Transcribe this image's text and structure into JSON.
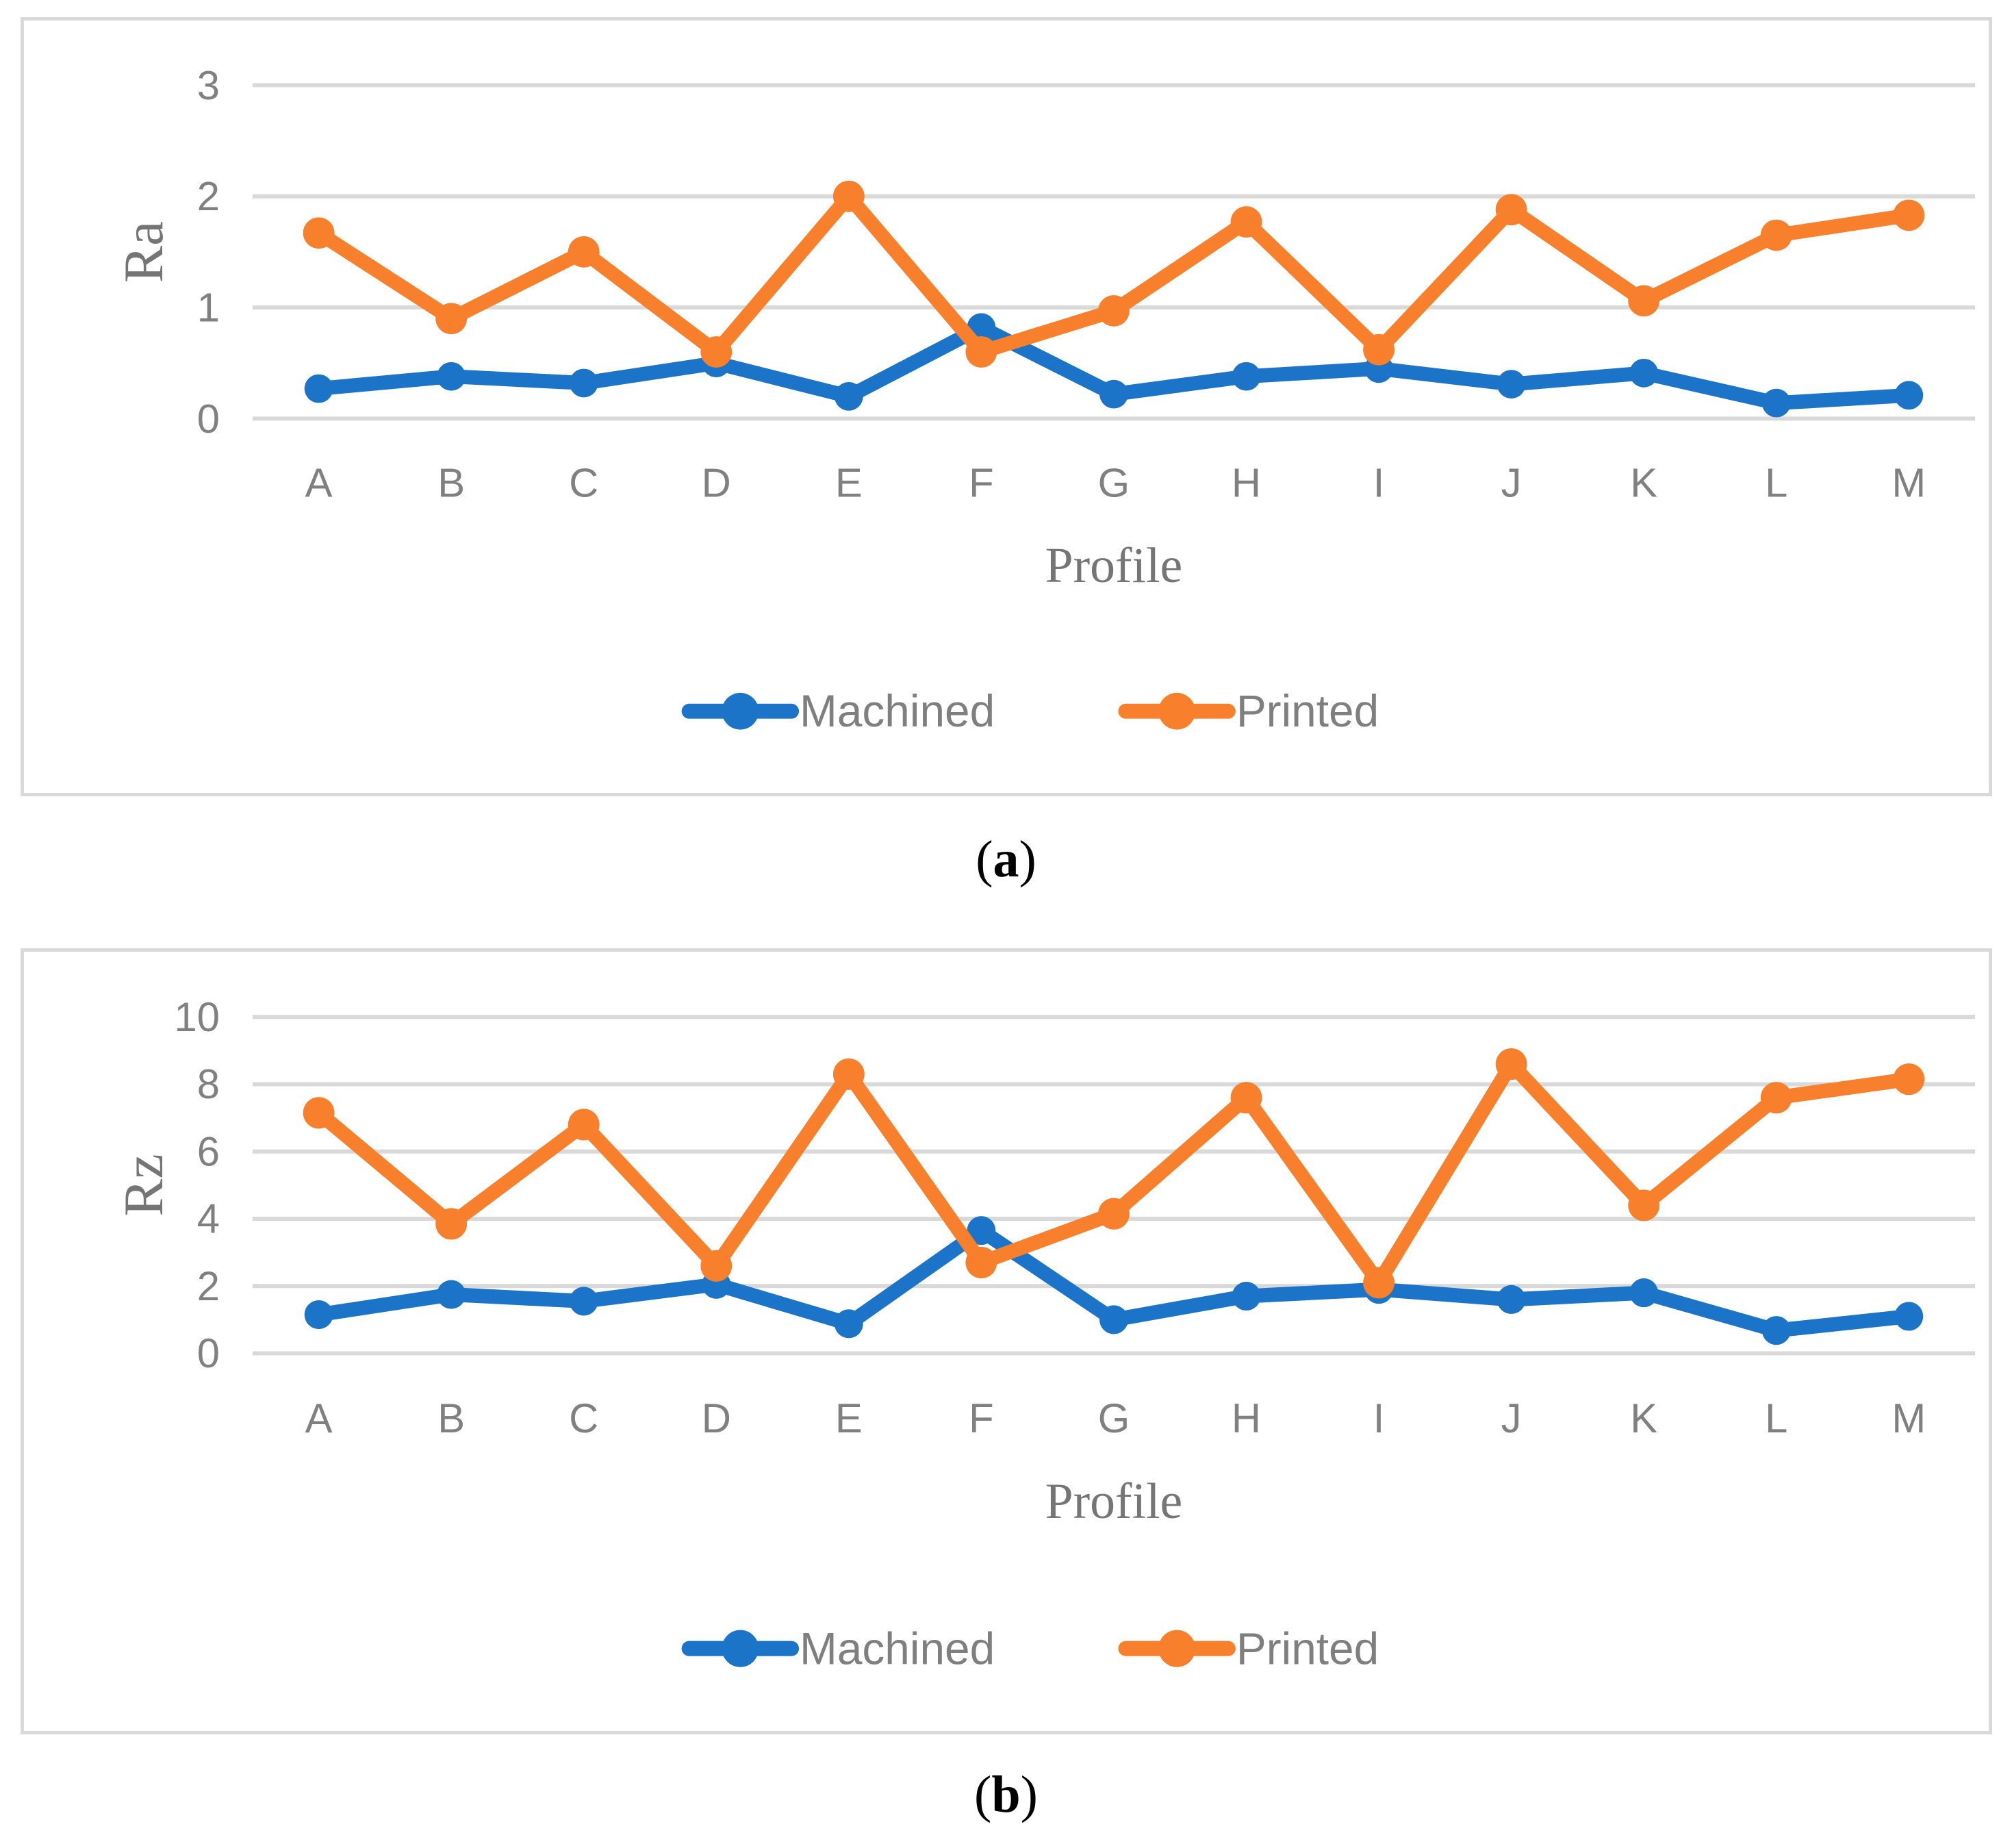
{
  "page": {
    "background": "#ffffff"
  },
  "colors": {
    "machined": "#1C74C8",
    "printed": "#F8802C",
    "gridline": "#D9D9D9",
    "panel_border": "#D9D9D9",
    "tick_text": "#808080",
    "axis_title_text": "#757575",
    "legend_text": "#7F7F7F",
    "caption_text": "#000000"
  },
  "captions": {
    "a": {
      "open": "(",
      "letter": "a",
      "close": ")"
    },
    "b": {
      "open": "(",
      "letter": "b",
      "close": ")"
    }
  },
  "chart_data": [
    {
      "id": "chart-a",
      "type": "line",
      "title": "",
      "xlabel": "Profile",
      "ylabel": "Ra",
      "categories": [
        "A",
        "B",
        "C",
        "D",
        "E",
        "F",
        "G",
        "H",
        "I",
        "J",
        "K",
        "L",
        "M"
      ],
      "series": [
        {
          "name": "Machined",
          "color_key": "machined",
          "values": [
            0.27,
            0.38,
            0.32,
            0.5,
            0.2,
            0.82,
            0.22,
            0.38,
            0.45,
            0.31,
            0.41,
            0.14,
            0.21
          ]
        },
        {
          "name": "Printed",
          "color_key": "printed",
          "values": [
            1.67,
            0.9,
            1.5,
            0.6,
            2.0,
            0.6,
            0.97,
            1.77,
            0.62,
            1.88,
            1.06,
            1.65,
            1.83
          ]
        }
      ],
      "ylim": [
        0,
        3
      ],
      "yticks": [
        0,
        1,
        2,
        3
      ],
      "grid": true,
      "legend_position": "bottom"
    },
    {
      "id": "chart-b",
      "type": "line",
      "title": "",
      "xlabel": "Profile",
      "ylabel": "Rz",
      "categories": [
        "A",
        "B",
        "C",
        "D",
        "E",
        "F",
        "G",
        "H",
        "I",
        "J",
        "K",
        "L",
        "M"
      ],
      "series": [
        {
          "name": "Machined",
          "color_key": "machined",
          "values": [
            1.15,
            1.75,
            1.55,
            2.05,
            0.88,
            3.65,
            1.0,
            1.7,
            1.9,
            1.6,
            1.8,
            0.68,
            1.1
          ]
        },
        {
          "name": "Printed",
          "color_key": "printed",
          "values": [
            7.15,
            3.85,
            6.8,
            2.6,
            8.3,
            2.7,
            4.15,
            7.6,
            2.1,
            8.6,
            4.4,
            7.6,
            8.15
          ]
        }
      ],
      "ylim": [
        0,
        10
      ],
      "yticks": [
        0,
        2,
        4,
        6,
        8,
        10
      ],
      "grid": true,
      "legend_position": "bottom"
    }
  ]
}
